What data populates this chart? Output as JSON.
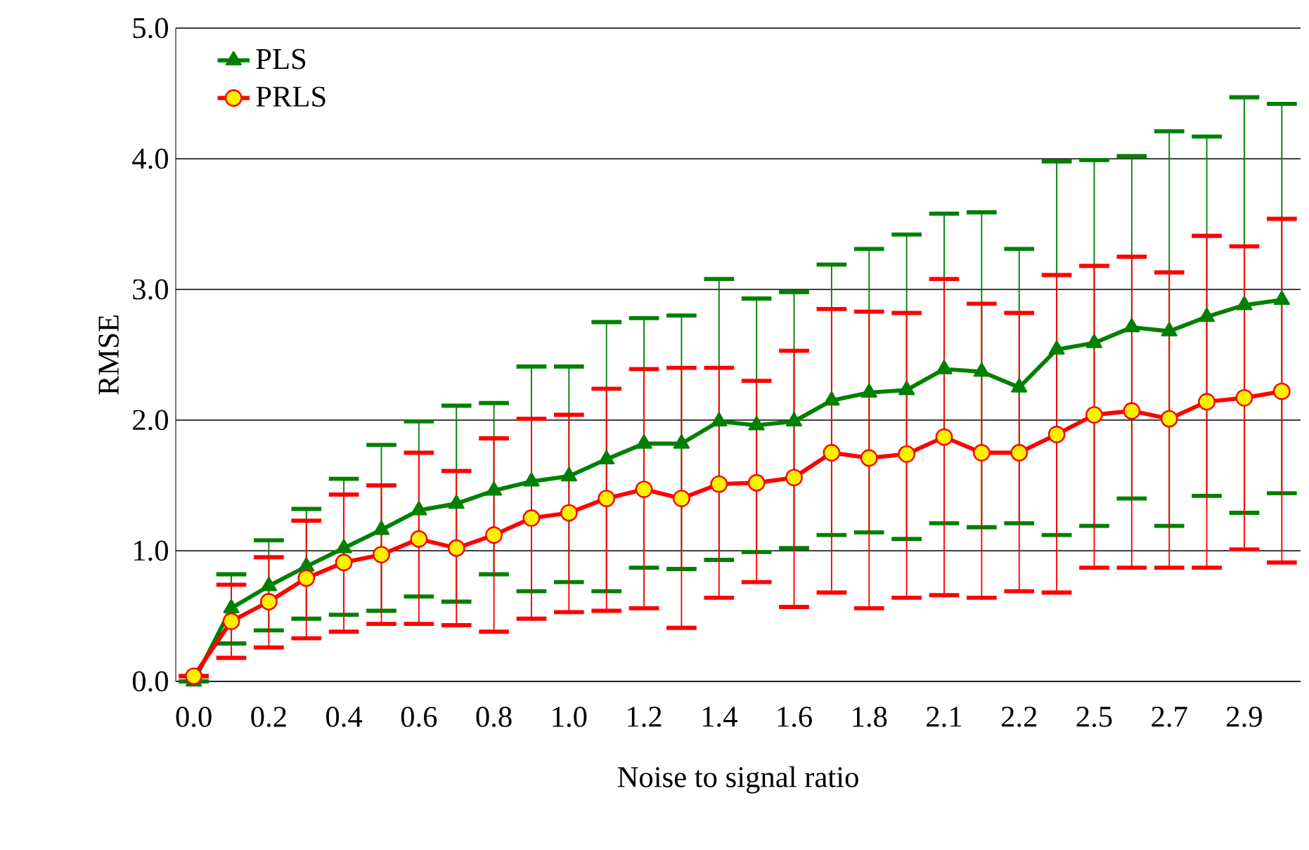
{
  "chart_data": {
    "type": "line",
    "xlabel": "Noise to signal ratio",
    "ylabel": "RMSE",
    "categories": [
      "0.0",
      null,
      "0.2",
      null,
      "0.4",
      null,
      "0.6",
      null,
      "0.8",
      null,
      "1.0",
      null,
      "1.2",
      null,
      "1.4",
      null,
      "1.6",
      null,
      "1.8",
      null,
      "2.1",
      null,
      "2.2",
      null,
      "2.5",
      null,
      "2.7",
      null,
      "2.9",
      null
    ],
    "ylim": [
      0,
      5
    ],
    "yticks": [
      {
        "value": 0,
        "label": "0.0"
      },
      {
        "value": 1,
        "label": "1.0"
      },
      {
        "value": 2,
        "label": "2.0"
      },
      {
        "value": 3,
        "label": "3.0"
      },
      {
        "value": 4,
        "label": "4.0"
      },
      {
        "value": 5,
        "label": "5.0"
      }
    ],
    "grid": "y",
    "legend": "top left",
    "line_style": "solid",
    "series": [
      {
        "name": "PLS",
        "color": "#008000",
        "marker": "triangle",
        "values": [
          0.0,
          0.56,
          0.73,
          0.88,
          1.02,
          1.16,
          1.31,
          1.36,
          1.46,
          1.53,
          1.57,
          1.7,
          1.82,
          1.82,
          1.99,
          1.96,
          1.99,
          2.15,
          2.21,
          2.23,
          2.39,
          2.37,
          2.25,
          2.54,
          2.59,
          2.71,
          2.68,
          2.79,
          2.88,
          2.92
        ],
        "errors": [
          null,
          [
            0.29,
            0.82
          ],
          [
            0.39,
            1.08
          ],
          [
            0.48,
            1.32
          ],
          [
            0.51,
            1.55
          ],
          [
            0.54,
            1.81
          ],
          [
            0.65,
            1.99
          ],
          [
            0.61,
            2.11
          ],
          [
            0.82,
            2.13
          ],
          [
            0.69,
            2.41
          ],
          [
            0.76,
            2.41
          ],
          [
            0.69,
            2.75
          ],
          [
            0.87,
            2.78
          ],
          [
            0.86,
            2.8
          ],
          [
            0.93,
            3.08
          ],
          [
            0.99,
            2.93
          ],
          [
            1.02,
            2.98
          ],
          [
            1.12,
            3.19
          ],
          [
            1.14,
            3.31
          ],
          [
            1.09,
            3.42
          ],
          [
            1.21,
            3.58
          ],
          [
            1.18,
            3.59
          ],
          [
            1.21,
            3.31
          ],
          [
            1.12,
            3.98
          ],
          [
            1.19,
            3.99
          ],
          [
            1.4,
            4.02
          ],
          [
            1.19,
            4.21
          ],
          [
            1.42,
            4.17
          ],
          [
            1.29,
            4.47
          ],
          [
            1.44,
            4.42
          ]
        ]
      },
      {
        "name": "PRLS",
        "color": "#ff0000",
        "marker": "circle",
        "values": [
          0.04,
          0.46,
          0.61,
          0.79,
          0.91,
          0.97,
          1.09,
          1.02,
          1.12,
          1.25,
          1.29,
          1.4,
          1.47,
          1.4,
          1.51,
          1.52,
          1.56,
          1.75,
          1.71,
          1.74,
          1.87,
          1.75,
          1.75,
          1.89,
          2.04,
          2.07,
          2.01,
          2.14,
          2.17,
          2.22
        ],
        "errors": [
          null,
          [
            0.18,
            0.74
          ],
          [
            0.26,
            0.95
          ],
          [
            0.33,
            1.23
          ],
          [
            0.38,
            1.43
          ],
          [
            0.44,
            1.5
          ],
          [
            0.44,
            1.75
          ],
          [
            0.43,
            1.61
          ],
          [
            0.38,
            1.86
          ],
          [
            0.48,
            2.01
          ],
          [
            0.53,
            2.04
          ],
          [
            0.54,
            2.24
          ],
          [
            0.56,
            2.39
          ],
          [
            0.41,
            2.4
          ],
          [
            0.64,
            2.4
          ],
          [
            0.76,
            2.3
          ],
          [
            0.57,
            2.53
          ],
          [
            0.68,
            2.85
          ],
          [
            0.56,
            2.83
          ],
          [
            0.64,
            2.82
          ],
          [
            0.66,
            3.08
          ],
          [
            0.64,
            2.89
          ],
          [
            0.69,
            2.82
          ],
          [
            0.68,
            3.11
          ],
          [
            0.87,
            3.18
          ],
          [
            0.87,
            3.25
          ],
          [
            0.87,
            3.13
          ],
          [
            0.87,
            3.41
          ],
          [
            1.01,
            3.33
          ],
          [
            0.91,
            3.54
          ]
        ]
      }
    ]
  }
}
